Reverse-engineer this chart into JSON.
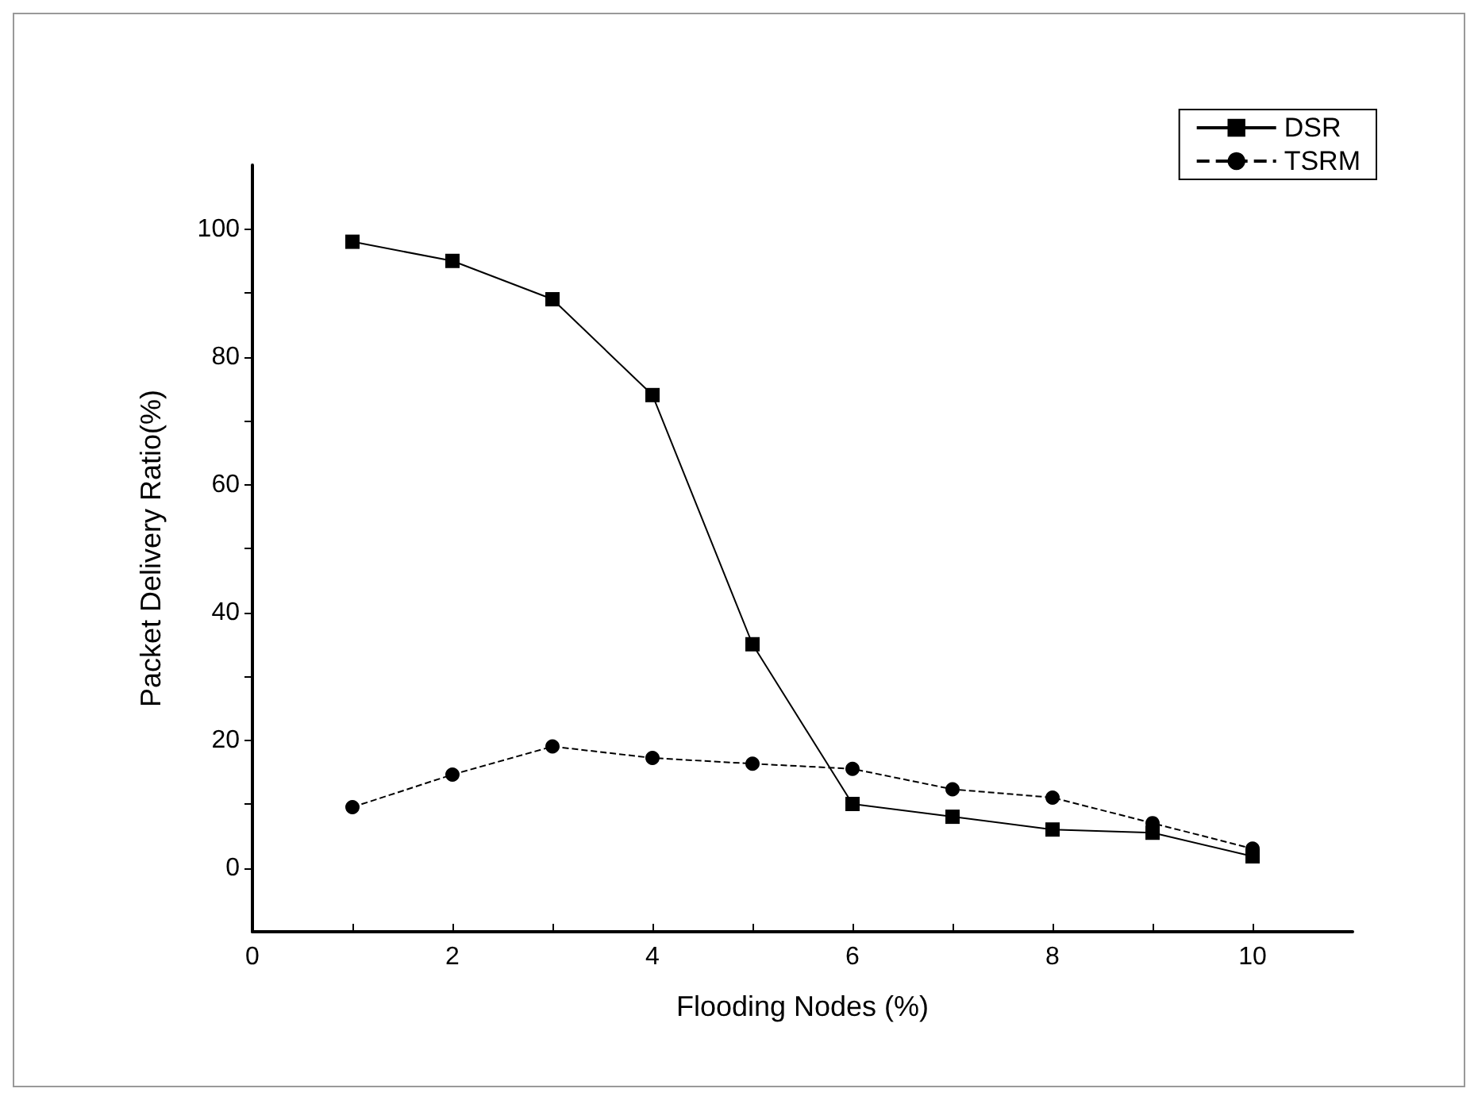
{
  "chart_data": {
    "type": "line",
    "xlabel": "Flooding Nodes (%)",
    "ylabel": "Packet Delivery Ratio(%)",
    "x": [
      1,
      2,
      3,
      4,
      5,
      6,
      7,
      8,
      9,
      10
    ],
    "series": [
      {
        "name": "DSR",
        "color": "#000000",
        "marker": "square",
        "line_style": "solid",
        "values": [
          98,
          95,
          89,
          74,
          35,
          10,
          8,
          6,
          5.5,
          1.8
        ]
      },
      {
        "name": "TSRM",
        "color": "#000000",
        "marker": "circle",
        "line_style": "dashed",
        "values": [
          9.5,
          14.6,
          19,
          17.2,
          16.3,
          15.5,
          12.3,
          11,
          7,
          3
        ]
      }
    ],
    "xlim": [
      0,
      11
    ],
    "xticks": [
      0,
      2,
      4,
      6,
      8,
      10
    ],
    "ylim": [
      -10,
      110
    ],
    "yticks": [
      0,
      20,
      40,
      60,
      80,
      100
    ],
    "grid": false,
    "legend": "top right"
  }
}
